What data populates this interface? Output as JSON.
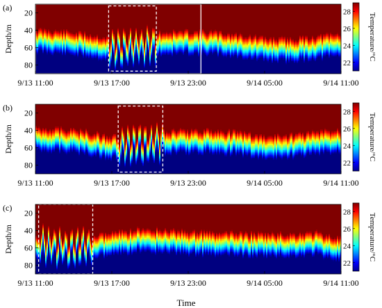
{
  "figure": {
    "xlabel": "Time",
    "colormap": "jet",
    "grid": false
  },
  "chart_data": [
    {
      "type": "heatmap",
      "panel_label": "(a)",
      "xlabel": "",
      "ylabel": "Depth/m",
      "colorbar_label": "Temperature/°C",
      "x_ticks": [
        "9/13 11:00",
        "9/13 17:00",
        "9/13 23:00",
        "9/14 05:00",
        "9/14 11:00"
      ],
      "x_range": [
        "9/13 11:00",
        "9/14 11:00"
      ],
      "y_ticks": [
        20,
        40,
        60,
        80
      ],
      "y_range": [
        10,
        90
      ],
      "y_reversed": true,
      "colorbar_ticks": [
        22,
        24,
        26,
        28
      ],
      "colorbar_range": [
        21,
        29
      ],
      "colors": {
        "max": "#8b0000",
        "min": "#00008f"
      },
      "thermocline_depth_profile": [
        {
          "time": "9/13 11:00",
          "depth": 52
        },
        {
          "time": "9/13 13:00",
          "depth": 54
        },
        {
          "time": "9/13 15:00",
          "depth": 57
        },
        {
          "time": "9/13 17:00",
          "depth": 62
        },
        {
          "time": "9/13 19:00",
          "depth": 60
        },
        {
          "time": "9/13 21:00",
          "depth": 55
        },
        {
          "time": "9/13 23:00",
          "depth": 54
        },
        {
          "time": "9/14 01:00",
          "depth": 55
        },
        {
          "time": "9/14 03:00",
          "depth": 58
        },
        {
          "time": "9/14 05:00",
          "depth": 62
        },
        {
          "time": "9/14 07:00",
          "depth": 63
        },
        {
          "time": "9/14 09:00",
          "depth": 60
        },
        {
          "time": "9/14 11:00",
          "depth": 57
        }
      ],
      "highlight_boxes": [
        {
          "style": "solid",
          "color": "#ffffff",
          "x_start": "9/13 11:00",
          "x_end": "9/14 00:00",
          "y_start": 10,
          "y_end": 90
        },
        {
          "style": "dashed",
          "color": "#ffffff",
          "x_start": "9/13 16:45",
          "x_end": "9/13 20:30",
          "y_start": 12,
          "y_end": 87
        }
      ]
    },
    {
      "type": "heatmap",
      "panel_label": "(b)",
      "xlabel": "",
      "ylabel": "Depth/m",
      "colorbar_label": "Temperature/°C",
      "x_ticks": [
        "9/13 11:00",
        "9/13 17:00",
        "9/13 23:00",
        "9/14 05:00",
        "9/14 11:00"
      ],
      "x_range": [
        "9/13 11:00",
        "9/14 11:00"
      ],
      "y_ticks": [
        20,
        40,
        60,
        80
      ],
      "y_range": [
        10,
        90
      ],
      "y_reversed": true,
      "colorbar_ticks": [
        22,
        24,
        26,
        28
      ],
      "colorbar_range": [
        21,
        29
      ],
      "colors": {
        "max": "#8b0000",
        "min": "#00008f"
      },
      "thermocline_depth_profile": [
        {
          "time": "9/13 11:00",
          "depth": 50
        },
        {
          "time": "9/13 13:00",
          "depth": 51
        },
        {
          "time": "9/13 15:00",
          "depth": 54
        },
        {
          "time": "9/13 17:00",
          "depth": 60
        },
        {
          "time": "9/13 19:00",
          "depth": 58
        },
        {
          "time": "9/13 21:00",
          "depth": 54
        },
        {
          "time": "9/13 23:00",
          "depth": 53
        },
        {
          "time": "9/14 01:00",
          "depth": 53
        },
        {
          "time": "9/14 03:00",
          "depth": 55
        },
        {
          "time": "9/14 05:00",
          "depth": 60
        },
        {
          "time": "9/14 07:00",
          "depth": 58
        },
        {
          "time": "9/14 09:00",
          "depth": 55
        },
        {
          "time": "9/14 11:00",
          "depth": 52
        }
      ],
      "highlight_boxes": [
        {
          "style": "dashed",
          "color": "#ffffff",
          "x_start": "9/13 17:30",
          "x_end": "9/13 21:00",
          "y_start": 12,
          "y_end": 88
        }
      ]
    },
    {
      "type": "heatmap",
      "panel_label": "(c)",
      "xlabel": "Time",
      "ylabel": "Depth/m",
      "colorbar_label": "Temperature/°C",
      "x_ticks": [
        "9/13 11:00",
        "9/13 17:00",
        "9/13 23:00",
        "9/14 05:00",
        "9/14 11:00"
      ],
      "x_range": [
        "9/13 11:00",
        "9/14 11:00"
      ],
      "y_ticks": [
        20,
        40,
        60,
        80
      ],
      "y_range": [
        10,
        90
      ],
      "y_reversed": true,
      "colorbar_ticks": [
        22,
        24,
        26,
        28
      ],
      "colorbar_range": [
        21,
        29
      ],
      "colors": {
        "max": "#8b0000",
        "min": "#00008f"
      },
      "thermocline_depth_profile": [
        {
          "time": "9/13 11:00",
          "depth": 58
        },
        {
          "time": "9/13 13:00",
          "depth": 60
        },
        {
          "time": "9/13 15:00",
          "depth": 60
        },
        {
          "time": "9/13 17:00",
          "depth": 56
        },
        {
          "time": "9/13 19:00",
          "depth": 52
        },
        {
          "time": "9/13 21:00",
          "depth": 52
        },
        {
          "time": "9/13 23:00",
          "depth": 54
        },
        {
          "time": "9/14 01:00",
          "depth": 56
        },
        {
          "time": "9/14 03:00",
          "depth": 56
        },
        {
          "time": "9/14 05:00",
          "depth": 57
        },
        {
          "time": "9/14 07:00",
          "depth": 57
        },
        {
          "time": "9/14 09:00",
          "depth": 55
        },
        {
          "time": "9/14 11:00",
          "depth": 62
        }
      ],
      "highlight_boxes": [
        {
          "style": "dashed",
          "color": "#ffffff",
          "x_start": "9/13 11:15",
          "x_end": "9/13 15:30",
          "y_start": 10,
          "y_end": 90
        }
      ]
    }
  ]
}
